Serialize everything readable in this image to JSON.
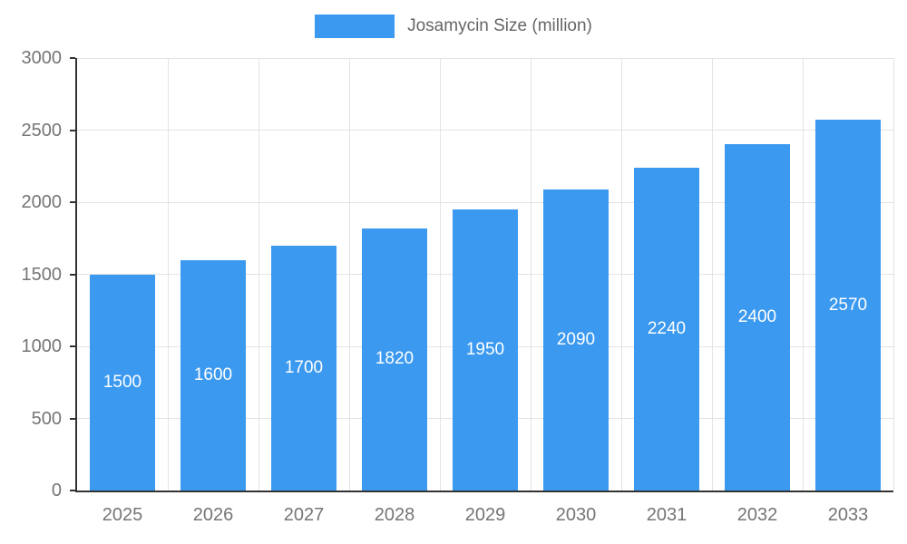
{
  "chart_data": {
    "type": "bar",
    "title": "Josamycin Size (million)",
    "categories": [
      "2025",
      "2026",
      "2027",
      "2028",
      "2029",
      "2030",
      "2031",
      "2032",
      "2033"
    ],
    "values": [
      1500,
      1600,
      1700,
      1820,
      1950,
      2090,
      2240,
      2400,
      2570
    ],
    "xlabel": "",
    "ylabel": "",
    "ylim": [
      0,
      3000
    ],
    "ytick_step": 500,
    "grid": true,
    "legend_position": "top",
    "colors": {
      "bar": "#3b99f0",
      "bar_value_label": "#ffffff",
      "axis_text": "#757575",
      "legend_text": "#666666",
      "axis_line": "#333333",
      "grid_line": "#e3e3e3"
    }
  }
}
